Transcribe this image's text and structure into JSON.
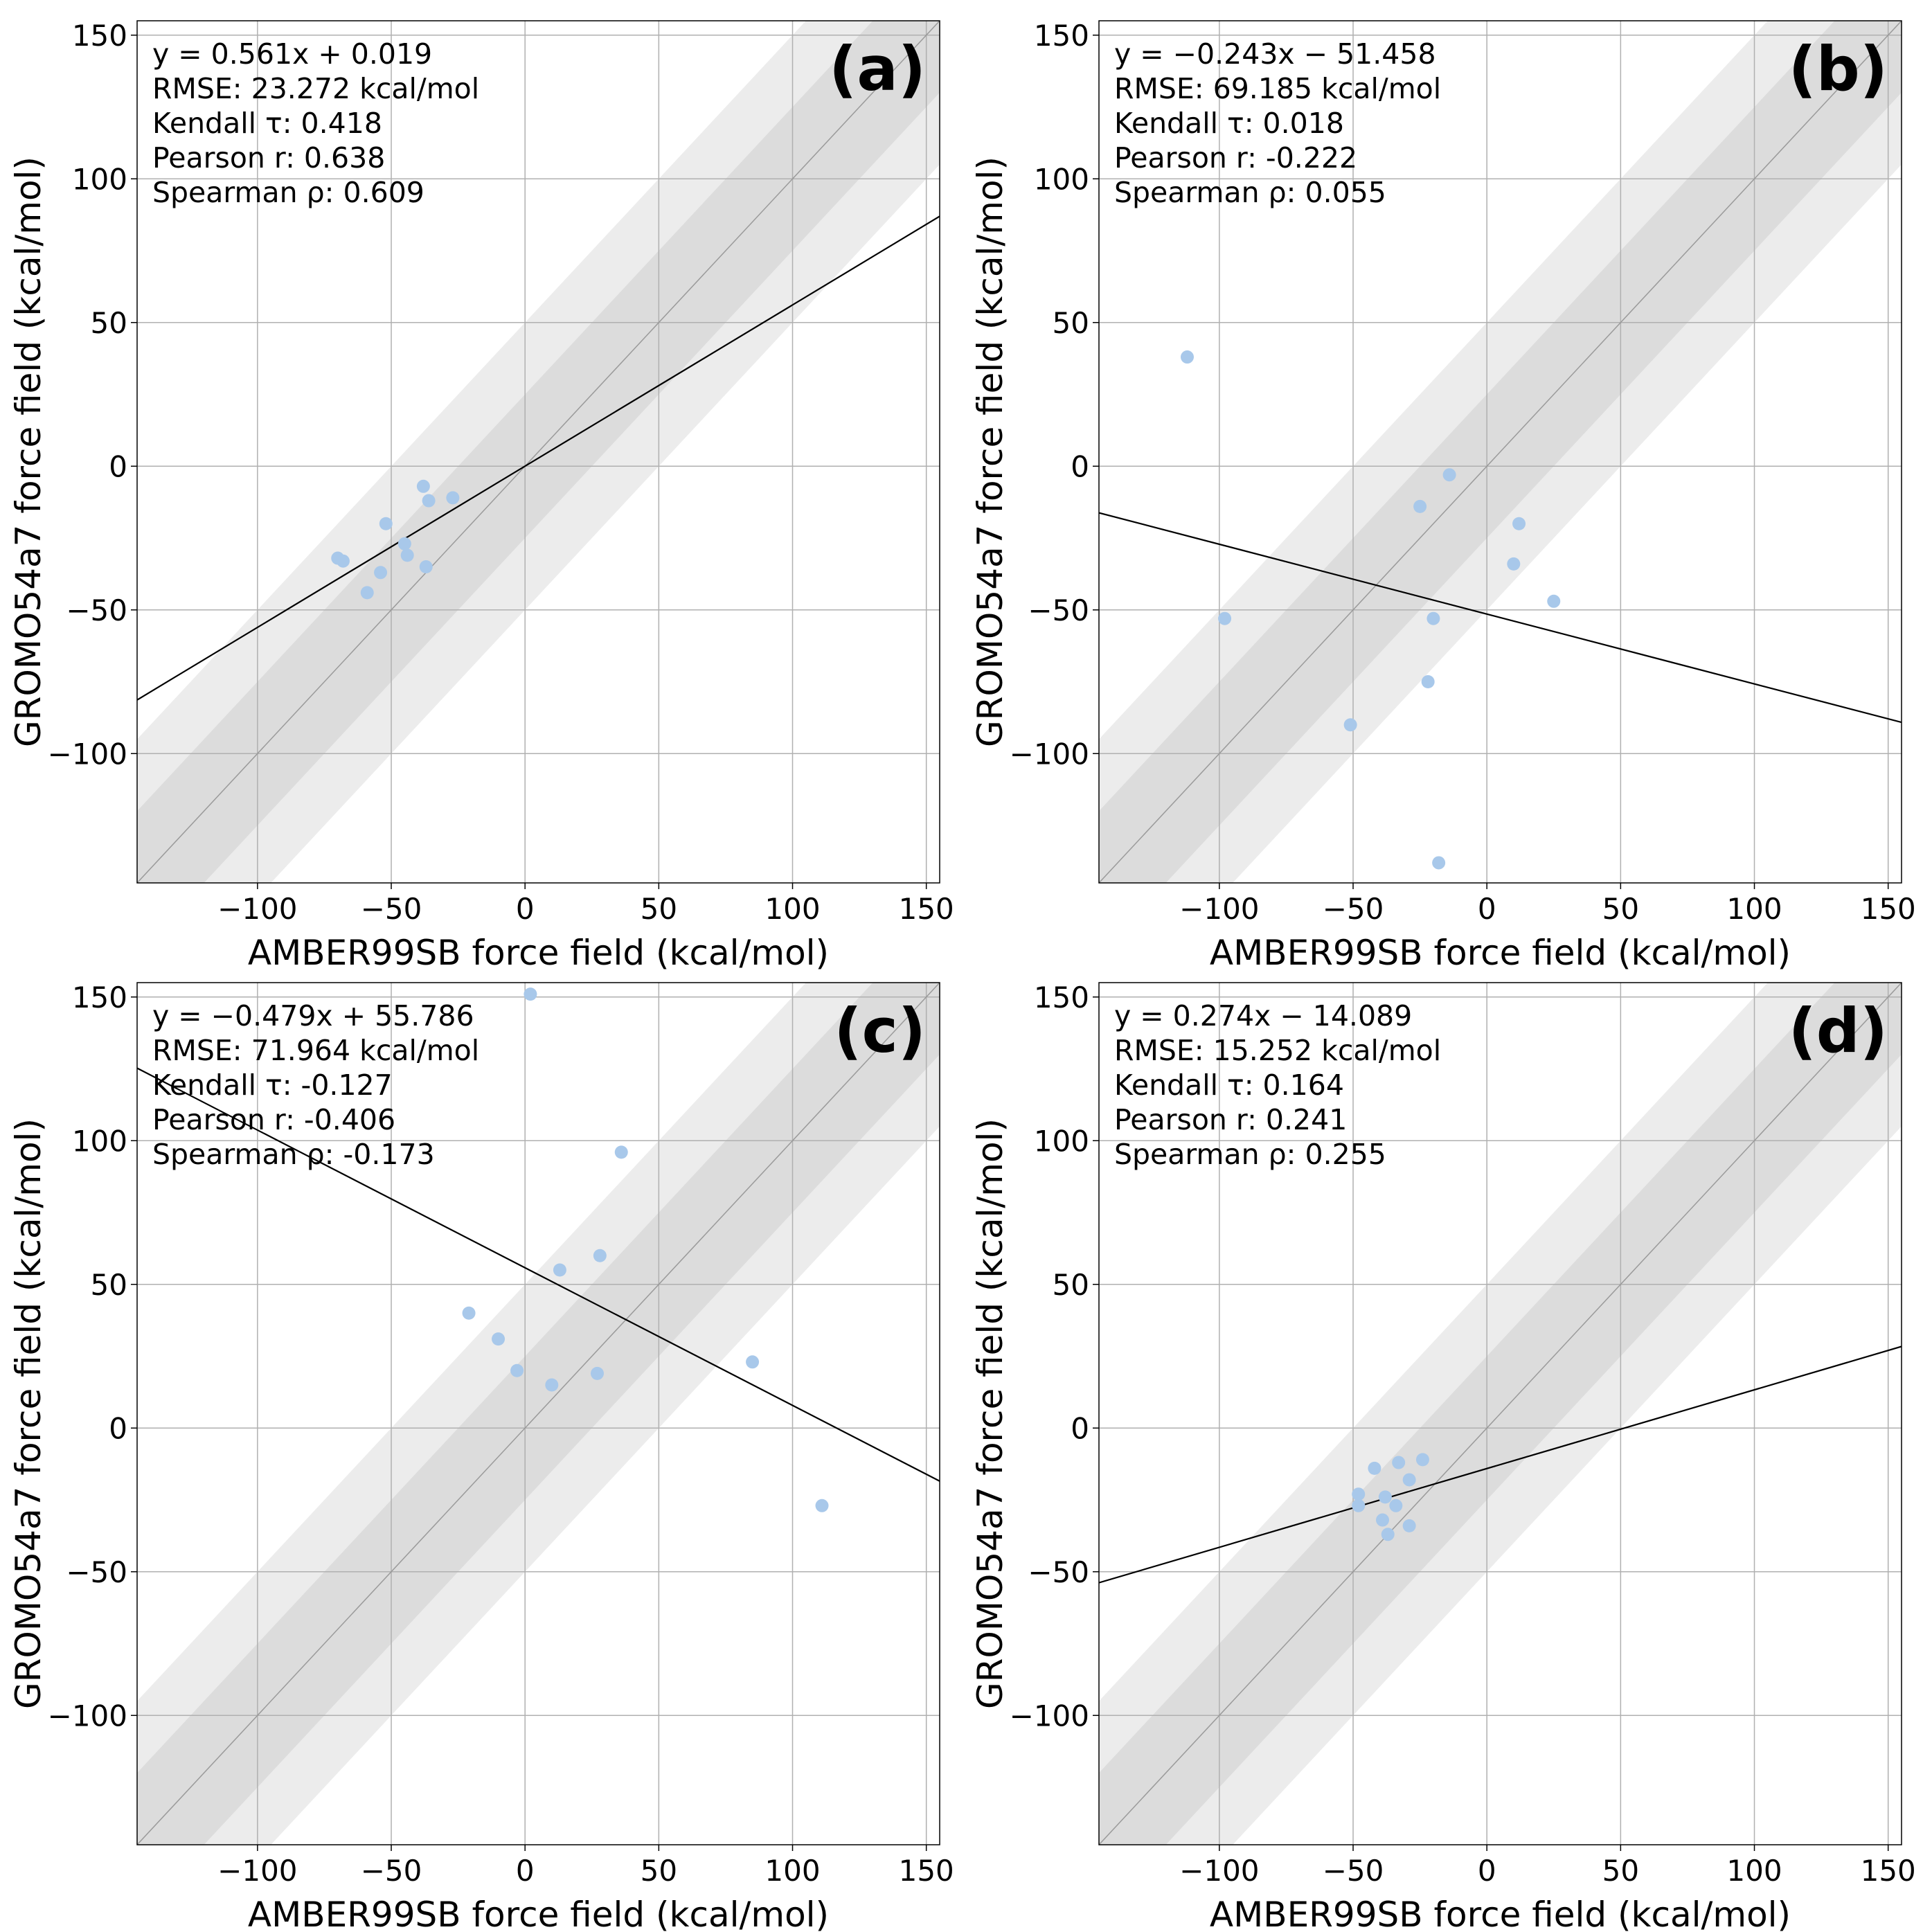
{
  "chart_data": [
    {
      "type": "scatter",
      "tag": "(a)",
      "xlabel": "AMBER99SB force field (kcal/mol)",
      "ylabel": "GROMO54a7 force field (kcal/mol)",
      "xlim": [
        -145,
        155
      ],
      "ylim": [
        -145,
        155
      ],
      "xticks": [
        -100,
        -50,
        0,
        50,
        100,
        150
      ],
      "yticks": [
        -100,
        -50,
        0,
        50,
        100,
        150
      ],
      "xtick_labels": [
        "−100",
        "−50",
        "0",
        "50",
        "100",
        "150"
      ],
      "ytick_labels": [
        "−100",
        "−50",
        "0",
        "50",
        "100",
        "150"
      ],
      "grid": true,
      "bands": [
        1.0,
        0.5
      ],
      "fit": {
        "slope": 0.561,
        "intercept": 0.019
      },
      "stats": {
        "equation": "y = 0.561x + 0.019",
        "rmse": "RMSE: 23.272 kcal/mol",
        "kendall": "Kendall τ: 0.418",
        "pearson": "Pearson r: 0.638",
        "spearman": "Spearman ρ: 0.609"
      },
      "points": [
        {
          "x": -70,
          "y": -32
        },
        {
          "x": -68,
          "y": -33
        },
        {
          "x": -59,
          "y": -44
        },
        {
          "x": -54,
          "y": -37
        },
        {
          "x": -52,
          "y": -20
        },
        {
          "x": -45,
          "y": -27
        },
        {
          "x": -44,
          "y": -31
        },
        {
          "x": -38,
          "y": -7
        },
        {
          "x": -37,
          "y": -35
        },
        {
          "x": -36,
          "y": -12
        },
        {
          "x": -27,
          "y": -11
        }
      ]
    },
    {
      "type": "scatter",
      "tag": "(b)",
      "xlabel": "AMBER99SB force field (kcal/mol)",
      "ylabel": "GROMO54a7 force field (kcal/mol)",
      "xlim": [
        -145,
        155
      ],
      "ylim": [
        -145,
        155
      ],
      "xticks": [
        -100,
        -50,
        0,
        50,
        100,
        150
      ],
      "yticks": [
        -100,
        -50,
        0,
        50,
        100,
        150
      ],
      "xtick_labels": [
        "−100",
        "−50",
        "0",
        "50",
        "100",
        "150"
      ],
      "ytick_labels": [
        "−100",
        "−50",
        "0",
        "50",
        "100",
        "150"
      ],
      "grid": true,
      "bands": [
        1.0,
        0.5
      ],
      "fit": {
        "slope": -0.243,
        "intercept": -51.458
      },
      "stats": {
        "equation": "y = −0.243x − 51.458",
        "rmse": "RMSE: 69.185 kcal/mol",
        "kendall": "Kendall τ: 0.018",
        "pearson": "Pearson r: -0.222",
        "spearman": "Spearman ρ: 0.055"
      },
      "points": [
        {
          "x": -112,
          "y": 38
        },
        {
          "x": -98,
          "y": -53
        },
        {
          "x": -51,
          "y": -90
        },
        {
          "x": -25,
          "y": -14
        },
        {
          "x": -22,
          "y": -75
        },
        {
          "x": -20,
          "y": -53
        },
        {
          "x": -18,
          "y": -138
        },
        {
          "x": -14,
          "y": -3
        },
        {
          "x": 10,
          "y": -34
        },
        {
          "x": 12,
          "y": -20
        },
        {
          "x": 25,
          "y": -47
        }
      ]
    },
    {
      "type": "scatter",
      "tag": "(c)",
      "xlabel": "AMBER99SB force field (kcal/mol)",
      "ylabel": "GROMO54a7 force field (kcal/mol)",
      "xlim": [
        -145,
        155
      ],
      "ylim": [
        -145,
        155
      ],
      "xticks": [
        -100,
        -50,
        0,
        50,
        100,
        150
      ],
      "yticks": [
        -100,
        -50,
        0,
        50,
        100,
        150
      ],
      "xtick_labels": [
        "−100",
        "−50",
        "0",
        "50",
        "100",
        "150"
      ],
      "ytick_labels": [
        "−100",
        "−50",
        "0",
        "50",
        "100",
        "150"
      ],
      "grid": true,
      "bands": [
        1.0,
        0.5
      ],
      "fit": {
        "slope": -0.479,
        "intercept": 55.786
      },
      "stats": {
        "equation": "y = −0.479x + 55.786",
        "rmse": "RMSE: 71.964 kcal/mol",
        "kendall": "Kendall τ: -0.127",
        "pearson": "Pearson r: -0.406",
        "spearman": "Spearman ρ: -0.173"
      },
      "points": [
        {
          "x": -21,
          "y": 40
        },
        {
          "x": -10,
          "y": 31
        },
        {
          "x": -3,
          "y": 20
        },
        {
          "x": 2,
          "y": 151
        },
        {
          "x": 10,
          "y": 15
        },
        {
          "x": 13,
          "y": 55
        },
        {
          "x": 27,
          "y": 19
        },
        {
          "x": 28,
          "y": 60
        },
        {
          "x": 36,
          "y": 96
        },
        {
          "x": 85,
          "y": 23
        },
        {
          "x": 111,
          "y": -27
        }
      ]
    },
    {
      "type": "scatter",
      "tag": "(d)",
      "xlabel": "AMBER99SB force field (kcal/mol)",
      "ylabel": "GROMO54a7 force field (kcal/mol)",
      "xlim": [
        -145,
        155
      ],
      "ylim": [
        -145,
        155
      ],
      "xticks": [
        -100,
        -50,
        0,
        50,
        100,
        150
      ],
      "yticks": [
        -100,
        -50,
        0,
        50,
        100,
        150
      ],
      "xtick_labels": [
        "−100",
        "−50",
        "0",
        "50",
        "100",
        "150"
      ],
      "ytick_labels": [
        "−100",
        "−50",
        "0",
        "50",
        "100",
        "150"
      ],
      "grid": true,
      "bands": [
        1.0,
        0.5
      ],
      "fit": {
        "slope": 0.274,
        "intercept": -14.089
      },
      "stats": {
        "equation": "y = 0.274x − 14.089",
        "rmse": "RMSE: 15.252 kcal/mol",
        "kendall": "Kendall τ: 0.164",
        "pearson": "Pearson r: 0.241",
        "spearman": "Spearman ρ: 0.255"
      },
      "points": [
        {
          "x": -48,
          "y": -23
        },
        {
          "x": -48,
          "y": -27
        },
        {
          "x": -42,
          "y": -14
        },
        {
          "x": -39,
          "y": -32
        },
        {
          "x": -38,
          "y": -24
        },
        {
          "x": -37,
          "y": -37
        },
        {
          "x": -34,
          "y": -27
        },
        {
          "x": -33,
          "y": -12
        },
        {
          "x": -29,
          "y": -18
        },
        {
          "x": -29,
          "y": -34
        },
        {
          "x": -24,
          "y": -11
        }
      ]
    }
  ],
  "style": {
    "point_color": "#a8c8ea",
    "band_outer_color": "#ececec",
    "band_inner_color": "#dcdcdc",
    "grid_color": "#b0b0b0",
    "fit_color": "#000000",
    "diagonal_color": "#9a9a9a"
  }
}
